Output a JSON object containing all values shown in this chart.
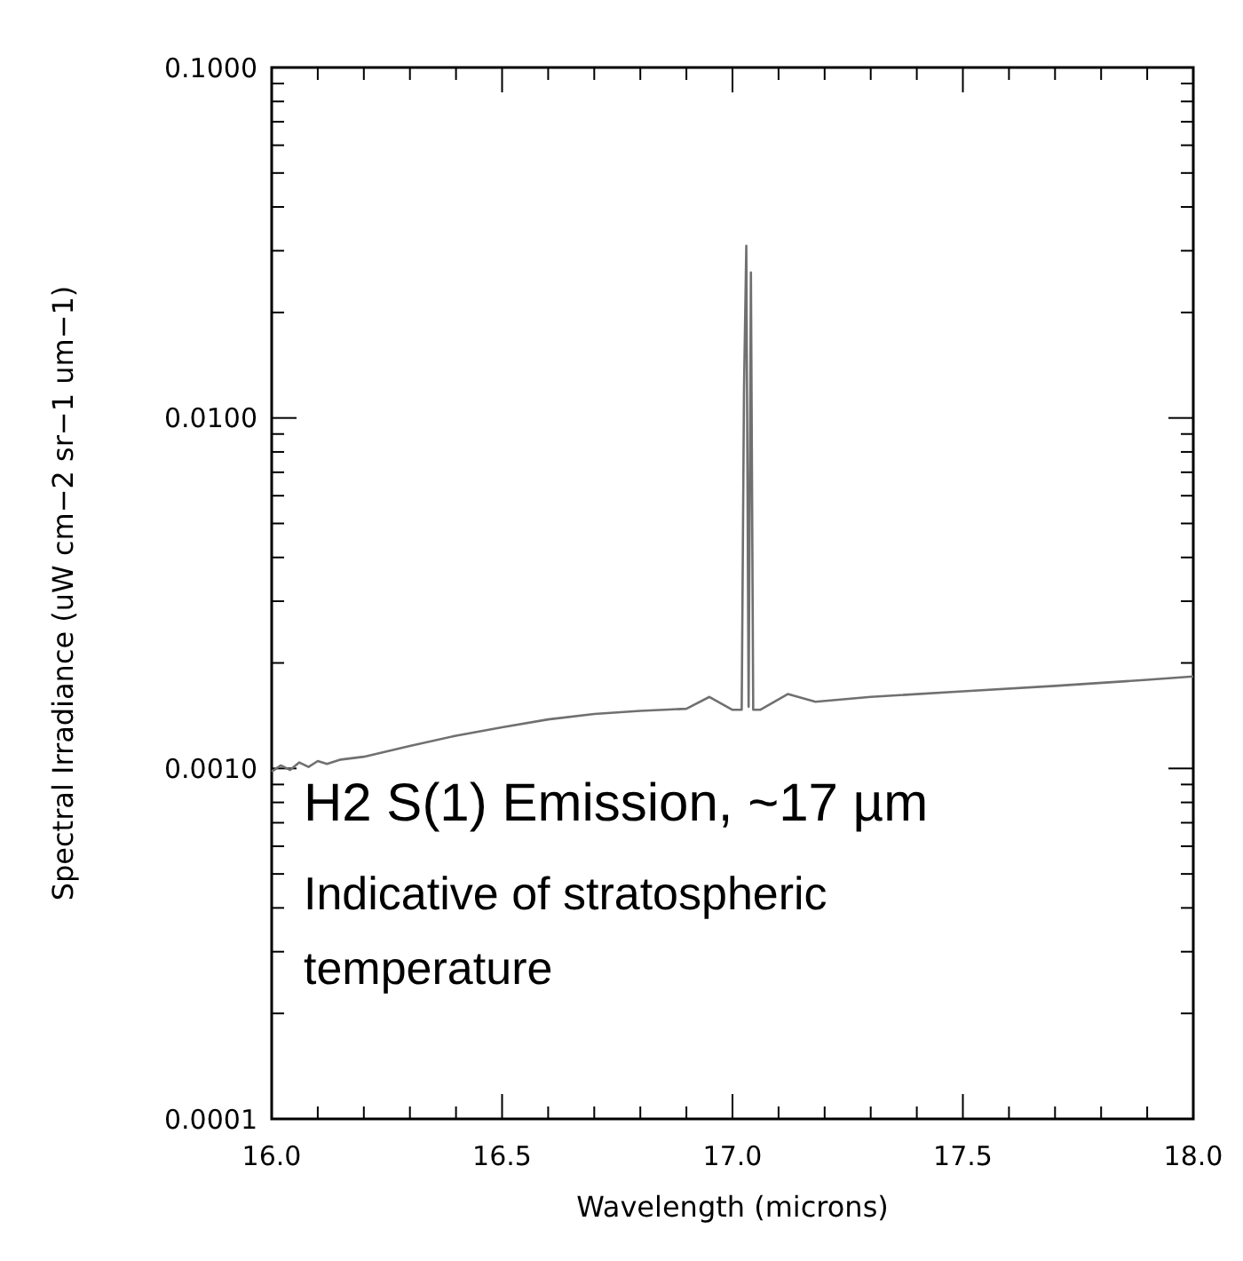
{
  "chart_data": {
    "type": "line",
    "xlabel": "Wavelength (microns)",
    "ylabel": "Spectral Irradiance (uW cm−2 sr−1 um−1)",
    "log": "y",
    "grid": false,
    "marker": "none",
    "line_style": "solid",
    "xlim": [
      16.0,
      18.0
    ],
    "ylim": [
      0.0001,
      0.1
    ],
    "xticks": [
      {
        "value": 16.0,
        "label": "16.0"
      },
      {
        "value": 16.1,
        "label": null
      },
      {
        "value": 16.2,
        "label": null
      },
      {
        "value": 16.3,
        "label": null
      },
      {
        "value": 16.4,
        "label": null
      },
      {
        "value": 16.5,
        "label": "16.5"
      },
      {
        "value": 16.6,
        "label": null
      },
      {
        "value": 16.7,
        "label": null
      },
      {
        "value": 16.8,
        "label": null
      },
      {
        "value": 16.9,
        "label": null
      },
      {
        "value": 17.0,
        "label": "17.0"
      },
      {
        "value": 17.1,
        "label": null
      },
      {
        "value": 17.2,
        "label": null
      },
      {
        "value": 17.3,
        "label": null
      },
      {
        "value": 17.4,
        "label": null
      },
      {
        "value": 17.5,
        "label": "17.5"
      },
      {
        "value": 17.6,
        "label": null
      },
      {
        "value": 17.7,
        "label": null
      },
      {
        "value": 17.8,
        "label": null
      },
      {
        "value": 17.9,
        "label": null
      },
      {
        "value": 18.0,
        "label": "18.0"
      }
    ],
    "yticks": [
      {
        "value": 0.0001,
        "label": "0.0001"
      },
      {
        "value": 0.0002,
        "label": null
      },
      {
        "value": 0.0003,
        "label": null
      },
      {
        "value": 0.0004,
        "label": null
      },
      {
        "value": 0.0005,
        "label": null
      },
      {
        "value": 0.0006,
        "label": null
      },
      {
        "value": 0.0007,
        "label": null
      },
      {
        "value": 0.0008,
        "label": null
      },
      {
        "value": 0.0009,
        "label": null
      },
      {
        "value": 0.001,
        "label": "0.0010"
      },
      {
        "value": 0.002,
        "label": null
      },
      {
        "value": 0.003,
        "label": null
      },
      {
        "value": 0.004,
        "label": null
      },
      {
        "value": 0.005,
        "label": null
      },
      {
        "value": 0.006,
        "label": null
      },
      {
        "value": 0.007,
        "label": null
      },
      {
        "value": 0.008,
        "label": null
      },
      {
        "value": 0.009,
        "label": null
      },
      {
        "value": 0.01,
        "label": "0.0100"
      },
      {
        "value": 0.02,
        "label": null
      },
      {
        "value": 0.03,
        "label": null
      },
      {
        "value": 0.04,
        "label": null
      },
      {
        "value": 0.05,
        "label": null
      },
      {
        "value": 0.06,
        "label": null
      },
      {
        "value": 0.07,
        "label": null
      },
      {
        "value": 0.08,
        "label": null
      },
      {
        "value": 0.09,
        "label": null
      },
      {
        "value": 0.1,
        "label": "0.1000"
      }
    ],
    "series": [
      {
        "color": "#707070",
        "x": [
          16.0,
          16.02,
          16.04,
          16.06,
          16.08,
          16.1,
          16.12,
          16.15,
          16.2,
          16.3,
          16.4,
          16.5,
          16.6,
          16.7,
          16.8,
          16.9,
          16.95,
          17.0,
          17.02,
          17.025,
          17.03,
          17.035,
          17.04,
          17.045,
          17.06,
          17.12,
          17.18,
          17.3,
          17.5,
          17.7,
          17.9,
          18.0
        ],
        "values": [
          0.00098,
          0.00102,
          0.00099,
          0.00104,
          0.00101,
          0.00105,
          0.00103,
          0.00106,
          0.00108,
          0.00116,
          0.00124,
          0.00131,
          0.00138,
          0.00143,
          0.00146,
          0.00148,
          0.0016,
          0.00147,
          0.00147,
          0.012,
          0.031,
          0.0015,
          0.026,
          0.00147,
          0.00147,
          0.00163,
          0.00155,
          0.0016,
          0.00166,
          0.00172,
          0.00179,
          0.00183
        ]
      }
    ],
    "annotations": [
      "H2 S(1) Emission, ~17 µm",
      "Indicative of stratospheric temperature"
    ]
  }
}
